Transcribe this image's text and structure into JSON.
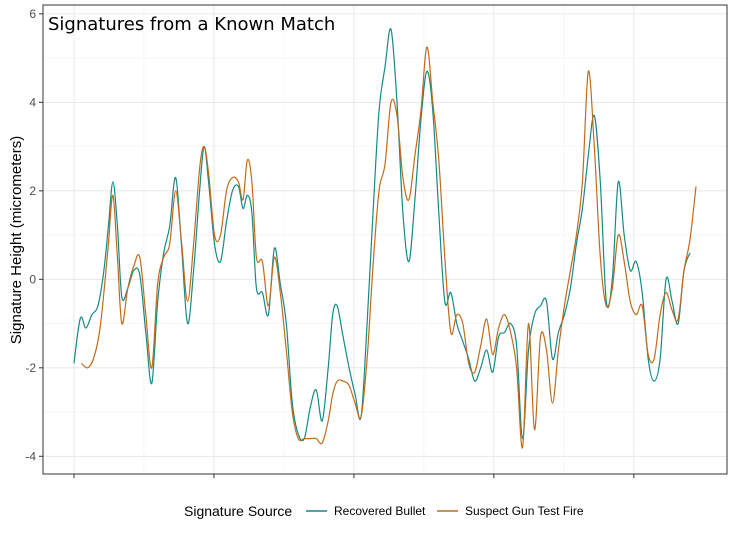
{
  "chart_data": {
    "type": "line",
    "title": "Signatures from a Known Match",
    "xlabel": "",
    "ylabel": "Signature Height (micrometers)",
    "ylim": [
      -4.4,
      6.2
    ],
    "y_ticks": [
      -4,
      -2,
      0,
      2,
      4,
      6
    ],
    "x_tick_labels_visible": false,
    "grid": true,
    "legend": {
      "title": "Signature Source",
      "position": "bottom"
    },
    "colors": {
      "Recovered Bullet": "#138a86",
      "Suspect Gun Test Fire": "#c36a1a"
    },
    "series": [
      {
        "name": "Recovered Bullet",
        "points": [
          [
            0,
            -1.9
          ],
          [
            0.3,
            -1.1
          ],
          [
            0.5,
            -0.85
          ],
          [
            0.8,
            -1.1
          ],
          [
            1.2,
            -0.8
          ],
          [
            1.6,
            -0.6
          ],
          [
            2.0,
            0.2
          ],
          [
            2.3,
            1.2
          ],
          [
            2.6,
            2.2
          ],
          [
            2.9,
            1.2
          ],
          [
            3.2,
            -0.4
          ],
          [
            3.6,
            -0.2
          ],
          [
            4.0,
            0.2
          ],
          [
            4.4,
            0.1
          ],
          [
            4.8,
            -1.2
          ],
          [
            5.2,
            -2.35
          ],
          [
            5.6,
            -0.5
          ],
          [
            6.0,
            0.6
          ],
          [
            6.4,
            1.2
          ],
          [
            6.8,
            2.3
          ],
          [
            7.2,
            0.7
          ],
          [
            7.6,
            -1.0
          ],
          [
            8.0,
            0.2
          ],
          [
            8.4,
            2.0
          ],
          [
            8.7,
            3.0
          ],
          [
            9.0,
            2.2
          ],
          [
            9.4,
            0.8
          ],
          [
            9.8,
            0.4
          ],
          [
            10.2,
            1.3
          ],
          [
            10.6,
            2.0
          ],
          [
            11.0,
            2.1
          ],
          [
            11.3,
            1.6
          ],
          [
            11.6,
            1.9
          ],
          [
            11.9,
            1.5
          ],
          [
            12.2,
            -0.2
          ],
          [
            12.6,
            -0.3
          ],
          [
            13.0,
            -0.8
          ],
          [
            13.4,
            0.7
          ],
          [
            13.8,
            -0.1
          ],
          [
            14.2,
            -1.0
          ],
          [
            14.6,
            -2.8
          ],
          [
            15.0,
            -3.5
          ],
          [
            15.4,
            -3.6
          ],
          [
            15.8,
            -2.9
          ],
          [
            16.2,
            -2.5
          ],
          [
            16.6,
            -3.2
          ],
          [
            17.0,
            -2.0
          ],
          [
            17.3,
            -0.8
          ],
          [
            17.6,
            -0.6
          ],
          [
            18.0,
            -1.3
          ],
          [
            18.4,
            -2.0
          ],
          [
            18.8,
            -2.6
          ],
          [
            19.2,
            -3.1
          ],
          [
            19.6,
            -1.0
          ],
          [
            20.0,
            1.5
          ],
          [
            20.4,
            3.8
          ],
          [
            20.8,
            4.8
          ],
          [
            21.2,
            5.65
          ],
          [
            21.6,
            4.0
          ],
          [
            22.0,
            1.5
          ],
          [
            22.4,
            0.4
          ],
          [
            22.8,
            1.8
          ],
          [
            23.2,
            3.6
          ],
          [
            23.6,
            4.7
          ],
          [
            24.0,
            3.8
          ],
          [
            24.4,
            1.5
          ],
          [
            24.8,
            -0.5
          ],
          [
            25.2,
            -0.3
          ],
          [
            25.6,
            -1.0
          ],
          [
            26.0,
            -1.4
          ],
          [
            26.4,
            -1.8
          ],
          [
            26.8,
            -2.3
          ],
          [
            27.2,
            -2.0
          ],
          [
            27.6,
            -1.6
          ],
          [
            28.0,
            -2.1
          ],
          [
            28.4,
            -1.3
          ],
          [
            28.8,
            -1.2
          ],
          [
            29.2,
            -1.0
          ],
          [
            29.6,
            -1.5
          ],
          [
            30.0,
            -3.6
          ],
          [
            30.4,
            -1.6
          ],
          [
            30.8,
            -0.8
          ],
          [
            31.2,
            -0.6
          ],
          [
            31.6,
            -0.5
          ],
          [
            32.0,
            -1.8
          ],
          [
            32.4,
            -1.2
          ],
          [
            32.8,
            -0.8
          ],
          [
            33.2,
            -0.2
          ],
          [
            33.6,
            0.8
          ],
          [
            34.0,
            1.6
          ],
          [
            34.4,
            2.8
          ],
          [
            34.8,
            3.7
          ],
          [
            35.2,
            2.2
          ],
          [
            35.6,
            -0.5
          ],
          [
            36.0,
            0.0
          ],
          [
            36.4,
            2.2
          ],
          [
            36.8,
            1.0
          ],
          [
            37.2,
            0.2
          ],
          [
            37.6,
            0.4
          ],
          [
            38.0,
            -0.3
          ],
          [
            38.4,
            -1.8
          ],
          [
            38.8,
            -2.3
          ],
          [
            39.2,
            -1.8
          ],
          [
            39.6,
            0.0
          ],
          [
            40.0,
            -0.5
          ],
          [
            40.4,
            -1.0
          ],
          [
            40.8,
            0.2
          ],
          [
            41.2,
            0.6
          ]
        ]
      },
      {
        "name": "Suspect Gun Test Fire",
        "points": [
          [
            0.5,
            -1.9
          ],
          [
            0.9,
            -2.0
          ],
          [
            1.3,
            -1.8
          ],
          [
            1.7,
            -1.2
          ],
          [
            2.0,
            -0.3
          ],
          [
            2.3,
            0.8
          ],
          [
            2.6,
            1.9
          ],
          [
            2.9,
            0.5
          ],
          [
            3.2,
            -1.0
          ],
          [
            3.6,
            -0.2
          ],
          [
            4.0,
            0.3
          ],
          [
            4.4,
            0.5
          ],
          [
            4.8,
            -0.8
          ],
          [
            5.2,
            -2.0
          ],
          [
            5.6,
            -0.1
          ],
          [
            6.0,
            0.5
          ],
          [
            6.4,
            0.8
          ],
          [
            6.8,
            2.0
          ],
          [
            7.2,
            0.8
          ],
          [
            7.6,
            -0.5
          ],
          [
            8.0,
            0.8
          ],
          [
            8.4,
            2.5
          ],
          [
            8.7,
            3.0
          ],
          [
            9.0,
            2.4
          ],
          [
            9.4,
            1.0
          ],
          [
            9.8,
            1.0
          ],
          [
            10.2,
            2.0
          ],
          [
            10.6,
            2.3
          ],
          [
            11.0,
            2.2
          ],
          [
            11.3,
            1.8
          ],
          [
            11.6,
            2.7
          ],
          [
            11.9,
            2.2
          ],
          [
            12.2,
            0.5
          ],
          [
            12.6,
            0.4
          ],
          [
            13.0,
            -0.6
          ],
          [
            13.4,
            0.5
          ],
          [
            13.8,
            -0.3
          ],
          [
            14.2,
            -1.6
          ],
          [
            14.6,
            -3.0
          ],
          [
            15.0,
            -3.6
          ],
          [
            15.4,
            -3.6
          ],
          [
            15.8,
            -3.6
          ],
          [
            16.2,
            -3.6
          ],
          [
            16.6,
            -3.7
          ],
          [
            17.0,
            -3.2
          ],
          [
            17.3,
            -2.6
          ],
          [
            17.6,
            -2.3
          ],
          [
            18.0,
            -2.3
          ],
          [
            18.4,
            -2.4
          ],
          [
            18.8,
            -2.8
          ],
          [
            19.2,
            -3.1
          ],
          [
            19.6,
            -1.8
          ],
          [
            20.0,
            0.3
          ],
          [
            20.4,
            2.0
          ],
          [
            20.8,
            2.6
          ],
          [
            21.2,
            4.0
          ],
          [
            21.6,
            3.7
          ],
          [
            22.0,
            2.3
          ],
          [
            22.4,
            1.8
          ],
          [
            22.8,
            2.8
          ],
          [
            23.2,
            3.8
          ],
          [
            23.6,
            5.25
          ],
          [
            24.0,
            4.0
          ],
          [
            24.4,
            2.7
          ],
          [
            24.8,
            0.5
          ],
          [
            25.2,
            -1.2
          ],
          [
            25.6,
            -0.8
          ],
          [
            26.0,
            -1.0
          ],
          [
            26.4,
            -1.9
          ],
          [
            26.8,
            -2.1
          ],
          [
            27.2,
            -1.5
          ],
          [
            27.6,
            -0.9
          ],
          [
            28.0,
            -1.7
          ],
          [
            28.4,
            -1.1
          ],
          [
            28.8,
            -0.8
          ],
          [
            29.2,
            -1.2
          ],
          [
            29.6,
            -2.0
          ],
          [
            30.0,
            -3.8
          ],
          [
            30.4,
            -1.0
          ],
          [
            30.8,
            -3.4
          ],
          [
            31.2,
            -1.3
          ],
          [
            31.6,
            -1.6
          ],
          [
            32.0,
            -2.8
          ],
          [
            32.4,
            -1.6
          ],
          [
            32.8,
            -0.6
          ],
          [
            33.2,
            0.2
          ],
          [
            33.6,
            1.0
          ],
          [
            34.0,
            2.2
          ],
          [
            34.4,
            4.7
          ],
          [
            34.8,
            3.0
          ],
          [
            35.2,
            0.5
          ],
          [
            35.6,
            -0.6
          ],
          [
            36.0,
            -0.2
          ],
          [
            36.4,
            1.0
          ],
          [
            36.8,
            0.4
          ],
          [
            37.2,
            -0.5
          ],
          [
            37.6,
            -0.8
          ],
          [
            38.0,
            -0.6
          ],
          [
            38.4,
            -1.7
          ],
          [
            38.8,
            -1.8
          ],
          [
            39.2,
            -0.8
          ],
          [
            39.6,
            -0.3
          ],
          [
            40.0,
            -0.7
          ],
          [
            40.4,
            -0.9
          ],
          [
            40.8,
            0.2
          ],
          [
            41.2,
            0.9
          ],
          [
            41.6,
            2.1
          ]
        ]
      }
    ]
  }
}
